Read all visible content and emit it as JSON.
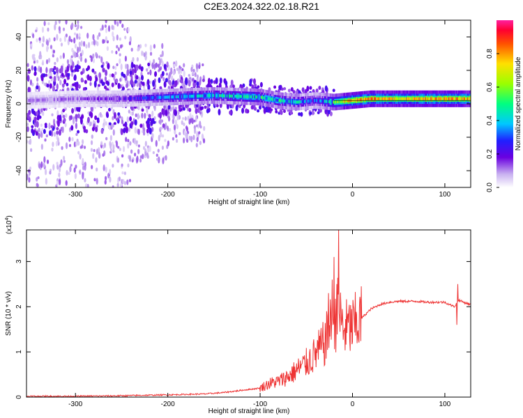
{
  "figure_title": "C2E3.2024.322.02.18.R21",
  "chart_data": [
    {
      "type": "heatmap",
      "xlabel": "Height of straight line (km)",
      "ylabel": "Frequency (Hz)",
      "xlim": [
        -353,
        128
      ],
      "ylim": [
        -50,
        50
      ],
      "x_ticks": [
        "-300",
        "-200",
        "-100",
        "0",
        "100"
      ],
      "y_ticks": [
        "-40",
        "-20",
        "0",
        "20",
        "40"
      ],
      "colorbar": {
        "label": "Normalized spectral amplitude",
        "range": [
          0,
          1
        ],
        "ticks": [
          "0.0",
          "0.2",
          "0.4",
          "0.6",
          "0.8"
        ]
      },
      "ridge": {
        "x": [
          -350,
          -300,
          -250,
          -200,
          -150,
          -100,
          -80,
          -60,
          -40,
          -20,
          0,
          20,
          40,
          60,
          80,
          100,
          125
        ],
        "freq_center": [
          2,
          3,
          3,
          4,
          5,
          4,
          2,
          1,
          2,
          1,
          2,
          3,
          3,
          3,
          3,
          3,
          3
        ],
        "peak_amplitude": [
          0.15,
          0.18,
          0.25,
          0.45,
          0.55,
          0.65,
          0.6,
          0.55,
          0.4,
          0.7,
          0.95,
          0.95,
          0.9,
          0.88,
          0.95,
          0.95,
          0.95
        ]
      }
    },
    {
      "type": "line",
      "xlabel": "Height of straight line (km)",
      "ylabel": "SNR (10 * v/v)",
      "exponent_label": "(x10",
      "exponent_sup": "4",
      "exponent_close": ")",
      "xlim": [
        -353,
        128
      ],
      "ylim": [
        0,
        3.7
      ],
      "x_ticks": [
        "-300",
        "-200",
        "-100",
        "0",
        "100"
      ],
      "y_ticks": [
        "0",
        "1",
        "2",
        "3"
      ],
      "color": "#ee3333",
      "series": [
        {
          "x": [
            -353,
            -300,
            -250,
            -200,
            -180,
            -160,
            -140,
            -120,
            -100,
            -90,
            -80,
            -70,
            -60,
            -50,
            -40,
            -30,
            -25,
            -20,
            -15,
            -10,
            0,
            10,
            20,
            30,
            40,
            50,
            60,
            70,
            80,
            90,
            100,
            105,
            110,
            112,
            115,
            120,
            128
          ],
          "values": [
            0.02,
            0.02,
            0.03,
            0.05,
            0.06,
            0.07,
            0.1,
            0.15,
            0.2,
            0.3,
            0.35,
            0.45,
            0.6,
            0.75,
            0.95,
            1.2,
            1.5,
            1.7,
            1.9,
            1.5,
            1.55,
            1.75,
            1.95,
            2.05,
            2.1,
            2.12,
            2.12,
            2.12,
            2.1,
            2.1,
            2.1,
            2.05,
            2.0,
            2.05,
            2.15,
            2.1,
            2.05
          ],
          "spikes": [
            {
              "x": -26,
              "value": 2.3
            },
            {
              "x": -22,
              "value": 2.6
            },
            {
              "x": -20,
              "value": 3.1
            },
            {
              "x": -17,
              "value": 2.5
            },
            {
              "x": -15,
              "value": 3.7
            },
            {
              "x": 114,
              "value": 2.5
            },
            {
              "x": 113,
              "value": 1.6
            }
          ]
        }
      ]
    }
  ]
}
